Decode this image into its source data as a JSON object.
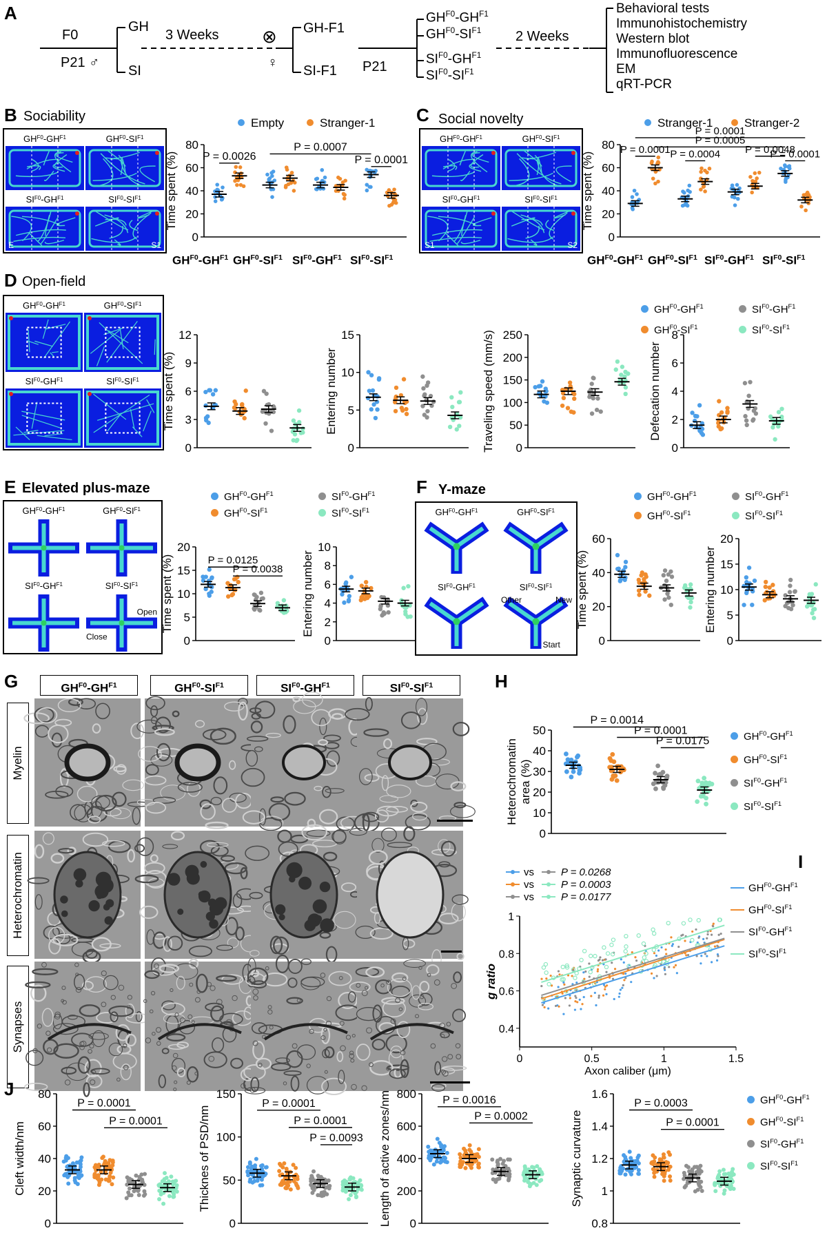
{
  "panelA": {
    "letter": "A",
    "f0": "F0",
    "p21male": "P21 ♂",
    "gh": "GH",
    "si": "SI",
    "weeks3": "3 Weeks",
    "cross": "⊗",
    "female": "♀",
    "ghf1": "GH-F1",
    "sif1": "SI-F1",
    "p21": "P21",
    "weeks2": "2 Weeks",
    "groups": [
      "GH",
      "GH",
      "SI",
      "SI"
    ],
    "groupSub": [
      [
        "F0",
        "F1"
      ],
      [
        "F0",
        "F1"
      ],
      [
        "F0",
        "F1"
      ],
      [
        "F0",
        "F1"
      ]
    ],
    "groupMid": [
      "-GH",
      "-SI",
      "-GH",
      "-SI"
    ],
    "tests": [
      "Behavioral tests",
      "Immunohistochemistry",
      "Western blot",
      "Immunofluorescence",
      "EM",
      "qRT-PCR"
    ]
  },
  "groupLabels": {
    "g1": {
      "a": "GH",
      "b": "F0",
      "c": "-GH",
      "d": "F1"
    },
    "g2": {
      "a": "GH",
      "b": "F0",
      "c": "-SI",
      "d": "F1"
    },
    "g3": {
      "a": "SI",
      "b": "F0",
      "c": "-GH",
      "d": "F1"
    },
    "g4": {
      "a": "SI",
      "b": "F0",
      "c": "-SI",
      "d": "F1"
    }
  },
  "colors": {
    "blue": "#4c9ee8",
    "orange": "#f08c2e",
    "gray": "#8f8f8f",
    "mint": "#8be8c0",
    "heatBg": "#0a1ee0",
    "trace": "#48d8d0"
  },
  "panelB": {
    "letter": "B",
    "title": "Sociability",
    "arenaE": "E",
    "arenaS1": "S1"
  },
  "panelC": {
    "letter": "C",
    "title": "Social novelty",
    "arenaS1": "S1",
    "arenaS2": "S2"
  },
  "panelD": {
    "letter": "D",
    "title": "Open-field"
  },
  "panelE": {
    "letter": "E",
    "title": "Elevated plus-maze",
    "close": "Close",
    "open": "Open"
  },
  "panelF": {
    "letter": "F",
    "title": "Y-maze",
    "other": "Other",
    "new": "New",
    "start": "Start"
  },
  "panelG": {
    "letter": "G",
    "rows": [
      "Myelin",
      "Heterochromatin",
      "Synapses"
    ]
  },
  "panelH": {
    "letter": "H"
  },
  "panelI": {
    "letter": "I",
    "legendVs": [
      "vs",
      "vs",
      "vs"
    ],
    "pvals": [
      "P = 0.0268",
      "P = 0.0003",
      "P = 0.0177"
    ]
  },
  "panelJ": {
    "letter": "J"
  },
  "chart_data": [
    {
      "id": "B",
      "type": "scatter",
      "ylabel": "Time spent (%)",
      "ylim": [
        0,
        80
      ],
      "yticks": [
        0,
        20,
        40,
        60,
        80
      ],
      "legend": [
        "Empty",
        "Stranger-1"
      ],
      "categories": [
        "GH-GH",
        "GH-SI",
        "SI-GH",
        "SI-SI"
      ],
      "series": [
        {
          "name": "Empty",
          "values": [
            37,
            45,
            45,
            54
          ]
        },
        {
          "name": "Stranger-1",
          "values": [
            53,
            51,
            43,
            36
          ]
        }
      ],
      "annotations": [
        {
          "text": "P = 0.0026"
        },
        {
          "text": "P = 0.0007"
        },
        {
          "text": "P = 0.0001"
        }
      ]
    },
    {
      "id": "C",
      "type": "scatter",
      "ylabel": "Time spent (%)",
      "ylim": [
        0,
        80
      ],
      "yticks": [
        0,
        20,
        40,
        60,
        80
      ],
      "legend": [
        "Stranger-1",
        "Stranger-2"
      ],
      "categories": [
        "GH-GH",
        "GH-SI",
        "SI-GH",
        "SI-SI"
      ],
      "series": [
        {
          "name": "Stranger-1",
          "values": [
            29,
            33,
            39,
            55
          ]
        },
        {
          "name": "Stranger-2",
          "values": [
            60,
            48,
            44,
            32
          ]
        }
      ],
      "annotations": [
        {
          "text": "P = 0.0001"
        },
        {
          "text": "P = 0.0004"
        },
        {
          "text": "P = 0.0005"
        },
        {
          "text": "P = 0.0001"
        },
        {
          "text": "P = 0.0048"
        },
        {
          "text": "P = 0.0001"
        }
      ]
    },
    {
      "id": "D1",
      "type": "scatter",
      "ylabel": "Time spent (%)",
      "ylim": [
        0,
        12
      ],
      "yticks": [
        0,
        3,
        6,
        9,
        12
      ],
      "values": [
        4.4,
        3.9,
        4.1,
        2.1
      ]
    },
    {
      "id": "D2",
      "type": "scatter",
      "ylabel": "Entering number",
      "ylim": [
        0,
        15
      ],
      "yticks": [
        0,
        5,
        10,
        15
      ],
      "values": [
        6.7,
        6.3,
        6.2,
        4.3
      ]
    },
    {
      "id": "D3",
      "type": "scatter",
      "ylabel": "Traveling speed (mm/s)",
      "ylim": [
        0,
        250
      ],
      "yticks": [
        0,
        50,
        100,
        150,
        200,
        250
      ],
      "values": [
        118,
        125,
        123,
        146
      ]
    },
    {
      "id": "D4",
      "type": "scatter",
      "ylabel": "Defecation number",
      "ylim": [
        0,
        8
      ],
      "yticks": [
        0,
        2,
        4,
        6,
        8
      ],
      "values": [
        1.6,
        2.0,
        3.1,
        1.9
      ]
    },
    {
      "id": "E1",
      "type": "scatter",
      "ylabel": "Time spent (%)",
      "ylim": [
        0,
        20
      ],
      "yticks": [
        0,
        5,
        10,
        15,
        20
      ],
      "values": [
        12,
        11.3,
        7.9,
        7
      ],
      "annotations": [
        {
          "text": "P = 0.0125"
        },
        {
          "text": "P = 0.0038"
        }
      ]
    },
    {
      "id": "E2",
      "type": "scatter",
      "ylabel": "Entering number",
      "ylim": [
        0,
        10
      ],
      "yticks": [
        0,
        2,
        4,
        6,
        8,
        10
      ],
      "values": [
        5.5,
        5.3,
        4.2,
        4.0
      ]
    },
    {
      "id": "F1",
      "type": "scatter",
      "ylabel": "Time spent (%)",
      "ylim": [
        0,
        60
      ],
      "yticks": [
        0,
        20,
        40,
        60
      ],
      "values": [
        39,
        32,
        31,
        28
      ]
    },
    {
      "id": "F2",
      "type": "scatter",
      "ylabel": "Entering number",
      "ylim": [
        0,
        20
      ],
      "yticks": [
        0,
        5,
        10,
        15,
        20
      ],
      "values": [
        10.5,
        9,
        8.2,
        7.9
      ]
    },
    {
      "id": "H",
      "type": "scatter",
      "ylabel": "Heterochromatin area (%)",
      "ylabel1": "Heterochromatin",
      "ylabel2": "area (%)",
      "ylim": [
        0,
        50
      ],
      "yticks": [
        0,
        10,
        20,
        30,
        40,
        50
      ],
      "values": [
        33,
        31,
        26,
        21
      ],
      "annotations": [
        {
          "text": "P = 0.0014"
        },
        {
          "text": "P = 0.0001"
        },
        {
          "text": "P = 0.0175"
        }
      ]
    },
    {
      "id": "I",
      "type": "scatter",
      "xlabel": "Axon caliber (μm)",
      "ylabel": "g ratio",
      "xlim": [
        0,
        1.5
      ],
      "ylim": [
        0.3,
        1.0
      ],
      "xticks": [
        0,
        0.5,
        1,
        1.5
      ],
      "xtickLabels": [
        "0",
        "0.5",
        "1",
        "1.5"
      ],
      "yticks": [
        0.4,
        0.6,
        0.8,
        1
      ],
      "ytickLabels": [
        "0.4",
        "0.6",
        "0.8",
        "1"
      ],
      "lines": [
        {
          "intercept": 0.5,
          "slope": 0.24
        },
        {
          "intercept": 0.52,
          "slope": 0.25
        },
        {
          "intercept": 0.54,
          "slope": 0.24
        },
        {
          "intercept": 0.61,
          "slope": 0.24
        }
      ]
    },
    {
      "id": "J1",
      "type": "scatter",
      "ylabel": "Cleft width/nm",
      "ylim": [
        0,
        80
      ],
      "yticks": [
        0,
        20,
        40,
        60,
        80
      ],
      "values": [
        33,
        33,
        24,
        22
      ],
      "annotations": [
        {
          "text": "P = 0.0001"
        },
        {
          "text": "P = 0.0001"
        }
      ]
    },
    {
      "id": "J2",
      "type": "scatter",
      "ylabel": "Thicknes of PSD/nm",
      "ylim": [
        0,
        150
      ],
      "yticks": [
        0,
        50,
        100,
        150
      ],
      "values": [
        58,
        55,
        46,
        42
      ],
      "annotations": [
        {
          "text": "P = 0.0001"
        },
        {
          "text": "P = 0.0001"
        },
        {
          "text": "P = 0.0093"
        }
      ]
    },
    {
      "id": "J3",
      "type": "scatter",
      "ylabel": "Length of active zones/nm",
      "ylim": [
        0,
        800
      ],
      "yticks": [
        0,
        200,
        400,
        600,
        800
      ],
      "values": [
        430,
        400,
        320,
        300
      ],
      "annotations": [
        {
          "text": "P = 0.0016"
        },
        {
          "text": "P = 0.0002"
        }
      ]
    },
    {
      "id": "J4",
      "type": "scatter",
      "ylabel": "Synaptic curvature",
      "ylim": [
        0.8,
        1.6
      ],
      "yticks": [
        0.8,
        1,
        1.2,
        1.4,
        1.6
      ],
      "ytickLabels": [
        "0.8",
        "1",
        "1.2",
        "1.4",
        "1.6"
      ],
      "values": [
        1.16,
        1.15,
        1.08,
        1.06
      ],
      "annotations": [
        {
          "text": "P = 0.0003"
        },
        {
          "text": "P = 0.0001"
        }
      ]
    }
  ]
}
